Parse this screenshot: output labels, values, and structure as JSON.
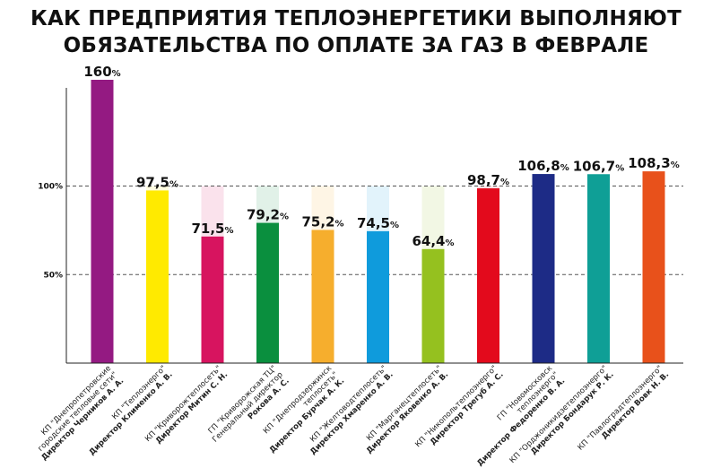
{
  "title_line1": "КАК ПРЕДПРИЯТИЯ ТЕПЛОЭНЕРГЕТИКИ ВЫПОЛНЯЮТ",
  "title_line2": "ОБЯЗАТЕЛЬСТВА ПО ОПЛАТЕ ЗА ГАЗ В ФЕВРАЛЕ",
  "chart_data": {
    "type": "bar",
    "title": "КАК ПРЕДПРИЯТИЯ ТЕПЛОЭНЕРГЕТИКИ ВЫПОЛНЯЮТ ОБЯЗАТЕЛЬСТВА ПО ОПЛАТЕ ЗА ГАЗ В ФЕВРАЛЕ",
    "ylim": [
      0,
      160
    ],
    "yticks": [
      {
        "value": 50,
        "label": "50%"
      },
      {
        "value": 100,
        "label": "100%"
      }
    ],
    "grid": "dashed lines at 50% and 100%",
    "categories": [
      {
        "lines": [
          "КП \"Днепропетровские",
          "городские тепловые сети\""
        ],
        "director_prefix": "Директор",
        "director": "Черников А. А.",
        "value": 160,
        "value_text": "160",
        "color": "#941a82"
      },
      {
        "lines": [
          "КП \"Теплоэнерго\""
        ],
        "director_prefix": "Директор",
        "director": "Клименко А. В.",
        "value": 97.5,
        "value_text": "97,5",
        "color": "#ffea00"
      },
      {
        "lines": [
          "КП \"Криворожтеплосеть\""
        ],
        "director_prefix": "Директор",
        "director": "Митин С. Н.",
        "value": 71.5,
        "value_text": "71,5",
        "color": "#d7145f"
      },
      {
        "lines": [
          "ГП \"Криворожская ТЦ\"",
          "Генеральный директор"
        ],
        "director_prefix": "",
        "director": "Рокова А. С.",
        "value": 79.2,
        "value_text": "79,2",
        "color": "#0a8f3e"
      },
      {
        "lines": [
          "КП \"Днепродзержинск",
          "теплосеть\""
        ],
        "director_prefix": "Директор",
        "director": "Бурчак А. К.",
        "value": 75.2,
        "value_text": "75,2",
        "color": "#f6ae2d"
      },
      {
        "lines": [
          "КП \"Желтоводтеплосеть\""
        ],
        "director_prefix": "Директор",
        "director": "Хмаренко А. В.",
        "value": 74.5,
        "value_text": "74,5",
        "color": "#0f9bdc"
      },
      {
        "lines": [
          "КП \"Марганецтеплосеть\""
        ],
        "director_prefix": "Директор",
        "director": "Яковенко А. В.",
        "value": 64.4,
        "value_text": "64,4",
        "color": "#95c11f"
      },
      {
        "lines": [
          "КП \"Никопольтеплоэнерго\""
        ],
        "director_prefix": "Директор",
        "director": "Трегуб А. С.",
        "value": 98.7,
        "value_text": "98,7",
        "color": "#e30a1c"
      },
      {
        "lines": [
          "ГП \"Новомосковск",
          "теплоэнерго\""
        ],
        "director_prefix": "Директор",
        "director": "Федоренко В. А.",
        "value": 106.8,
        "value_text": "106,8",
        "color": "#1d2b86"
      },
      {
        "lines": [
          "КП \"Орджоникидзетеплоэнерго\""
        ],
        "director_prefix": "Директор",
        "director": "Бондарук Р. К.",
        "value": 106.7,
        "value_text": "106,7",
        "color": "#0f9f96"
      },
      {
        "lines": [
          "КП \"Павлоградтеплоэнерго\""
        ],
        "director_prefix": "Директор",
        "director": "Вовк Н. В.",
        "value": 108.3,
        "value_text": "108,3",
        "color": "#e8511b"
      }
    ],
    "percent_sign": "%",
    "background_stripe_opacity": 0.12
  }
}
